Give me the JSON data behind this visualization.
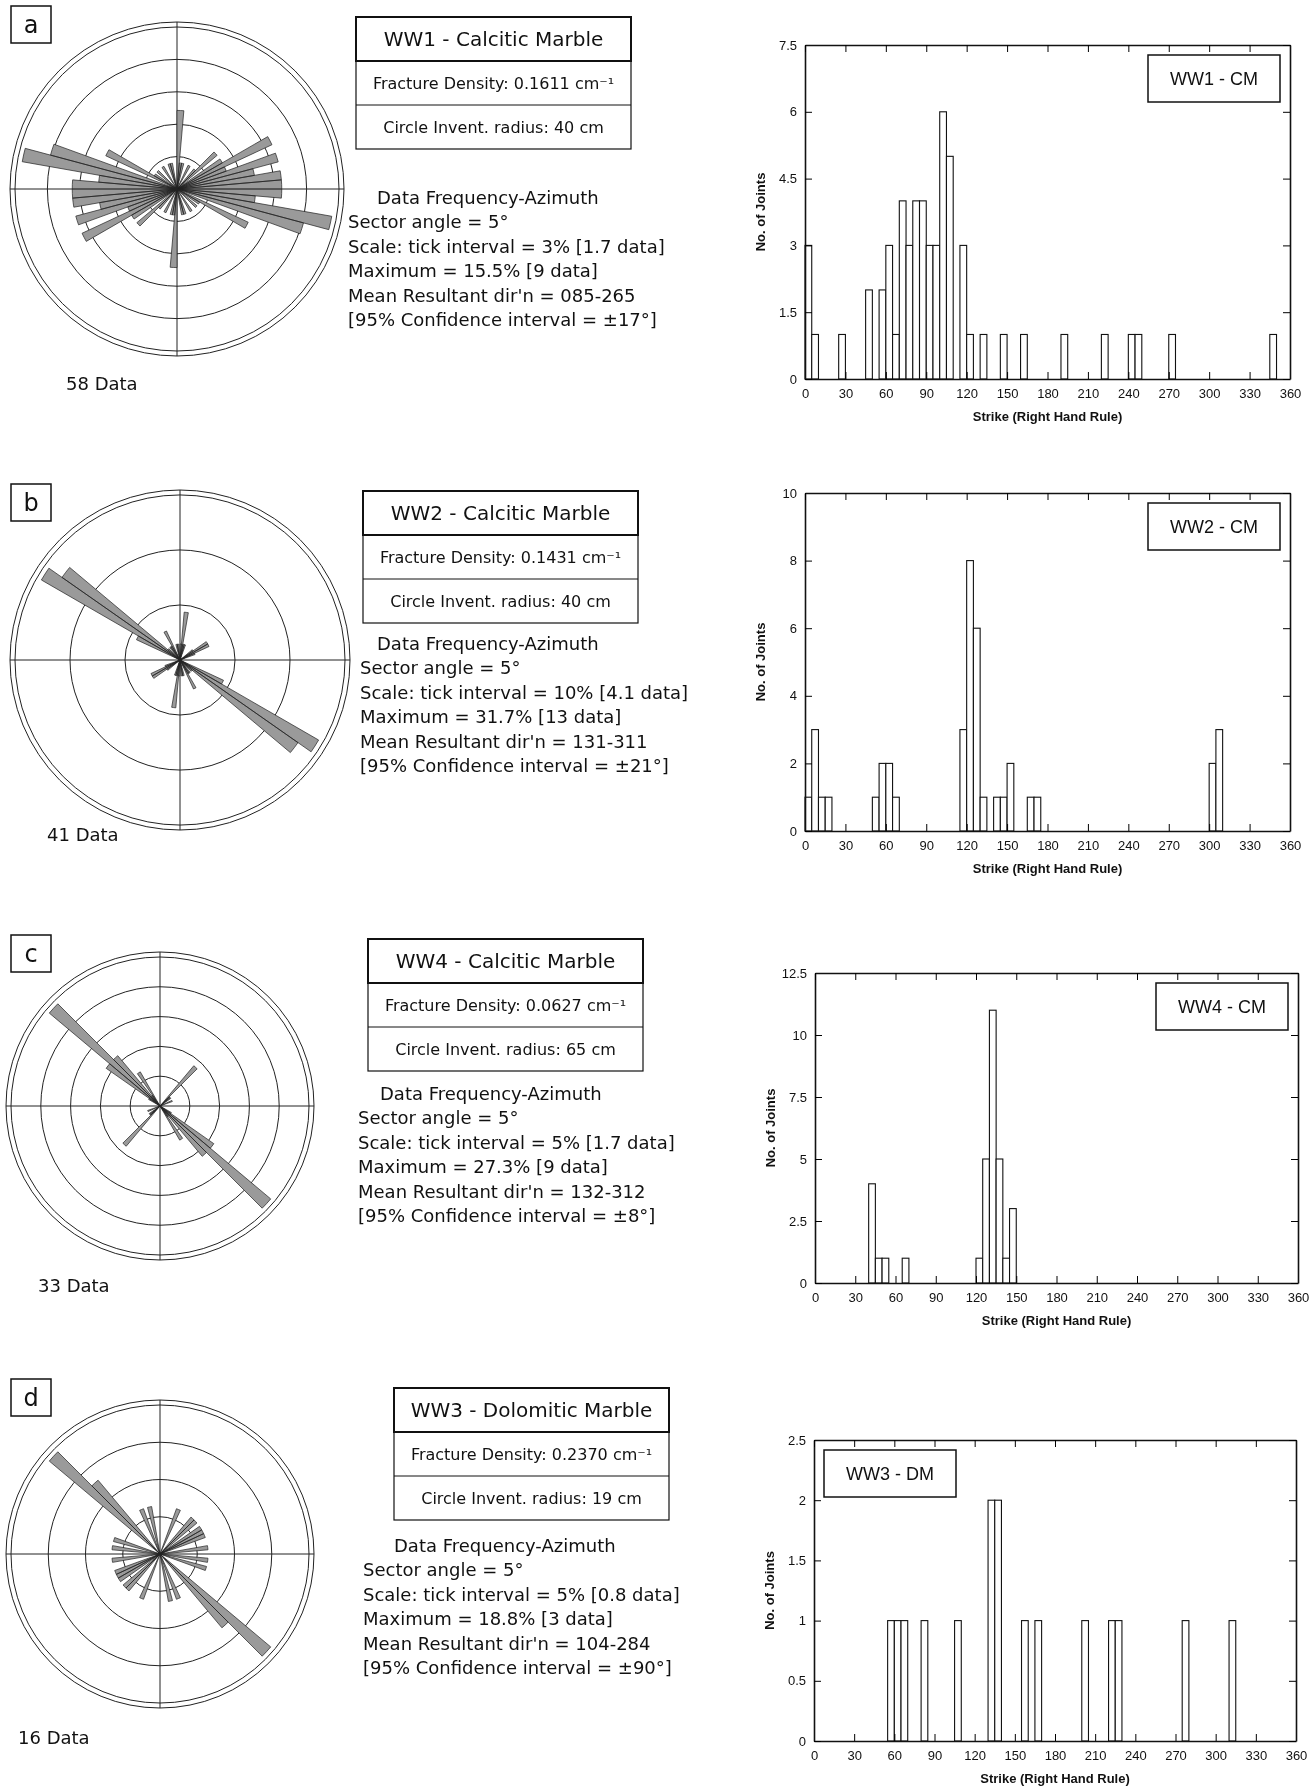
{
  "chart_data": [
    {
      "type": "other",
      "title": "WW1 - Calcitic Marble",
      "annotations": [
        "a",
        "Fracture Density: 0.1611 cm⁻¹",
        "Circle Invent. radius: 40 cm",
        "Data Frequency-Azimuth",
        "Sector angle = 5°",
        "Scale: tick interval = 3%  [1.7 data]",
        "Maximum = 15.5%  [9 data]",
        "Mean Resultant dir'n  = 085-265",
        "[95% Confidence interval = ±17°]",
        "58 Data"
      ]
    },
    {
      "type": "histogram",
      "xlabel": "Strike (Right Hand Rule)",
      "ylabel": "No. of Joints",
      "annotations": [
        "WW1 - CM"
      ],
      "color": "#ffffff",
      "bins": [
        0,
        5,
        10,
        15,
        20,
        25,
        30,
        35,
        40,
        45,
        50,
        55,
        60,
        65,
        70,
        75,
        80,
        85,
        90,
        95,
        100,
        105,
        110,
        115,
        120,
        125,
        130,
        135,
        140,
        145,
        150,
        155,
        160,
        165,
        170,
        175,
        180,
        185,
        190,
        195,
        200,
        205,
        210,
        215,
        220,
        225,
        230,
        235,
        240,
        245,
        250,
        255,
        260,
        265,
        270,
        275,
        280,
        285,
        290,
        295,
        300,
        305,
        310,
        315,
        320,
        325,
        330,
        335,
        340,
        345,
        350,
        355,
        360
      ],
      "values": [
        3,
        1,
        0,
        0,
        0,
        1,
        0,
        0,
        0,
        2,
        0,
        2,
        3,
        1,
        4,
        3,
        4,
        4,
        3,
        3,
        6,
        5,
        0,
        3,
        1,
        0,
        1,
        0,
        0,
        1,
        0,
        0,
        1,
        0,
        0,
        0,
        0,
        0,
        1,
        0,
        0,
        0,
        0,
        0,
        1,
        0,
        0,
        0,
        1,
        1,
        0,
        0,
        0,
        0,
        1,
        0,
        0,
        0,
        0,
        0,
        0,
        0,
        0,
        0,
        0,
        0,
        0,
        0,
        0,
        1,
        0,
        0
      ],
      "xlim": [
        0,
        360
      ],
      "xticks": [
        0,
        30,
        60,
        90,
        120,
        150,
        180,
        210,
        240,
        270,
        300,
        330,
        360
      ],
      "ylim": [
        0,
        7.5
      ],
      "yticks": [
        0,
        1.5,
        3,
        4.5,
        6,
        7.5
      ]
    },
    {
      "type": "other",
      "title": "WW2 - Calcitic Marble",
      "annotations": [
        "b",
        "Fracture Density: 0.1431 cm⁻¹",
        "Circle Invent. radius: 40 cm",
        "Data Frequency-Azimuth",
        "Sector angle = 5°",
        "Scale: tick interval = 10%  [4.1 data]",
        "Maximum = 31.7%  [13 data]",
        "Mean Resultant dir'n  = 131-311",
        "[95% Confidence interval = ±21°]",
        "41 Data"
      ]
    },
    {
      "type": "histogram",
      "xlabel": "Strike (Right Hand Rule)",
      "ylabel": "No. of Joints",
      "annotations": [
        "WW2 - CM"
      ],
      "color": "#ffffff",
      "bins": [
        0,
        5,
        10,
        15,
        20,
        25,
        30,
        35,
        40,
        45,
        50,
        55,
        60,
        65,
        70,
        75,
        80,
        85,
        90,
        95,
        100,
        105,
        110,
        115,
        120,
        125,
        130,
        135,
        140,
        145,
        150,
        155,
        160,
        165,
        170,
        175,
        180,
        185,
        190,
        195,
        200,
        205,
        210,
        215,
        220,
        225,
        230,
        235,
        240,
        245,
        250,
        255,
        260,
        265,
        270,
        275,
        280,
        285,
        290,
        295,
        300,
        305,
        310,
        315,
        320,
        325,
        330,
        335,
        340,
        345,
        350,
        355,
        360
      ],
      "values": [
        1,
        3,
        1,
        1,
        0,
        0,
        0,
        0,
        0,
        0,
        1,
        2,
        2,
        1,
        0,
        0,
        0,
        0,
        0,
        0,
        0,
        0,
        0,
        3,
        8,
        6,
        1,
        0,
        1,
        1,
        2,
        0,
        0,
        1,
        1,
        0,
        0,
        0,
        0,
        0,
        0,
        0,
        0,
        0,
        0,
        0,
        0,
        0,
        0,
        0,
        0,
        0,
        0,
        0,
        0,
        0,
        0,
        0,
        0,
        0,
        2,
        3,
        0,
        0,
        0,
        0,
        0,
        0,
        0,
        0,
        0,
        0
      ],
      "xlim": [
        0,
        360
      ],
      "xticks": [
        0,
        30,
        60,
        90,
        120,
        150,
        180,
        210,
        240,
        270,
        300,
        330,
        360
      ],
      "ylim": [
        0,
        10
      ],
      "yticks": [
        0,
        2,
        4,
        6,
        8,
        10
      ]
    },
    {
      "type": "other",
      "title": "WW4 - Calcitic Marble",
      "annotations": [
        "c",
        "Fracture Density: 0.0627 cm⁻¹",
        "Circle Invent. radius: 65 cm",
        "Data Frequency-Azimuth",
        "Sector angle = 5°",
        "Scale: tick interval = 5%  [1.7 data]",
        "Maximum = 27.3%  [9 data]",
        "Mean Resultant dir'n  = 132-312",
        "[95% Confidence interval = ±8°]",
        "33 Data"
      ]
    },
    {
      "type": "histogram",
      "xlabel": "Strike (Right Hand Rule)",
      "ylabel": "No. of Joints",
      "annotations": [
        "WW4 - CM"
      ],
      "color": "#ffffff",
      "bins": [
        0,
        5,
        10,
        15,
        20,
        25,
        30,
        35,
        40,
        45,
        50,
        55,
        60,
        65,
        70,
        75,
        80,
        85,
        90,
        95,
        100,
        105,
        110,
        115,
        120,
        125,
        130,
        135,
        140,
        145,
        150,
        155,
        160,
        165,
        170,
        175,
        180,
        185,
        190,
        195,
        200,
        205,
        210,
        215,
        220,
        225,
        230,
        235,
        240,
        245,
        250,
        255,
        260,
        265,
        270,
        275,
        280,
        285,
        290,
        295,
        300,
        305,
        310,
        315,
        320,
        325,
        330,
        335,
        340,
        345,
        350,
        355,
        360
      ],
      "values": [
        0,
        0,
        0,
        0,
        0,
        0,
        0,
        0,
        4,
        1,
        1,
        0,
        0,
        1,
        0,
        0,
        0,
        0,
        0,
        0,
        0,
        0,
        0,
        0,
        1,
        5,
        11,
        5,
        1,
        3,
        0,
        0,
        0,
        0,
        0,
        0,
        0,
        0,
        0,
        0,
        0,
        0,
        0,
        0,
        0,
        0,
        0,
        0,
        0,
        0,
        0,
        0,
        0,
        0,
        0,
        0,
        0,
        0,
        0,
        0,
        0,
        0,
        0,
        0,
        0,
        0,
        0,
        0,
        0,
        0,
        0,
        0
      ],
      "xlim": [
        0,
        360
      ],
      "xticks": [
        0,
        30,
        60,
        90,
        120,
        150,
        180,
        210,
        240,
        270,
        300,
        330,
        360
      ],
      "ylim": [
        0,
        12.5
      ],
      "yticks": [
        0,
        2.5,
        5,
        7.5,
        10,
        12.5
      ]
    },
    {
      "type": "other",
      "title": "WW3 - Dolomitic Marble",
      "annotations": [
        "d",
        "Fracture Density: 0.2370 cm⁻¹",
        "Circle Invent. radius: 19 cm",
        "Data Frequency-Azimuth",
        "Sector angle = 5°",
        "Scale: tick interval = 5%  [0.8 data]",
        "Maximum = 18.8%  [3 data]",
        "Mean Resultant dir'n  = 104-284",
        "[95% Confidence interval = ±90°]",
        "16 Data"
      ]
    },
    {
      "type": "histogram",
      "xlabel": "Strike (Right Hand Rule)",
      "ylabel": "No. of Joints",
      "annotations": [
        "WW3 - DM"
      ],
      "color": "#ffffff",
      "bins": [
        0,
        5,
        10,
        15,
        20,
        25,
        30,
        35,
        40,
        45,
        50,
        55,
        60,
        65,
        70,
        75,
        80,
        85,
        90,
        95,
        100,
        105,
        110,
        115,
        120,
        125,
        130,
        135,
        140,
        145,
        150,
        155,
        160,
        165,
        170,
        175,
        180,
        185,
        190,
        195,
        200,
        205,
        210,
        215,
        220,
        225,
        230,
        235,
        240,
        245,
        250,
        255,
        260,
        265,
        270,
        275,
        280,
        285,
        290,
        295,
        300,
        305,
        310,
        315,
        320,
        325,
        330,
        335,
        340,
        345,
        350,
        355,
        360
      ],
      "values": [
        0,
        0,
        0,
        0,
        0,
        0,
        0,
        0,
        0,
        0,
        0,
        1,
        1,
        1,
        0,
        0,
        1,
        0,
        0,
        0,
        0,
        1,
        0,
        0,
        0,
        0,
        2,
        2,
        0,
        0,
        0,
        1,
        0,
        1,
        0,
        0,
        0,
        0,
        0,
        0,
        1,
        0,
        0,
        0,
        1,
        1,
        0,
        0,
        0,
        0,
        0,
        0,
        0,
        0,
        0,
        1,
        0,
        0,
        0,
        0,
        0,
        0,
        1,
        0,
        0,
        0,
        0,
        0,
        0,
        0,
        0,
        0
      ],
      "xlim": [
        0,
        360
      ],
      "xticks": [
        0,
        30,
        60,
        90,
        120,
        150,
        180,
        210,
        240,
        270,
        300,
        330,
        360
      ],
      "ylim": [
        0,
        2.5
      ],
      "yticks": [
        0,
        0.5,
        1,
        1.5,
        2,
        2.5
      ]
    }
  ]
}
